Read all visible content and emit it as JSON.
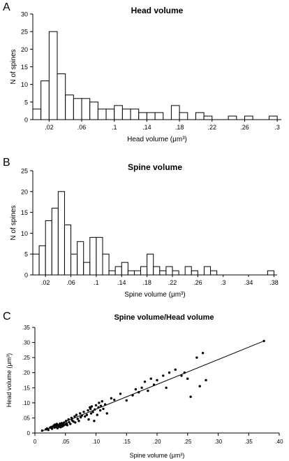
{
  "panels": [
    {
      "letter": "A",
      "chart_data": {
        "type": "bar",
        "title": "Head volume",
        "xlabel": "Head volume (μm³)",
        "ylabel": "N of spines",
        "bin_width": 0.01,
        "bin_start": 0.0,
        "xlim": [
          0,
          0.305
        ],
        "ylim": [
          0,
          30
        ],
        "yticks": [
          0,
          5,
          10,
          15,
          20,
          25,
          30
        ],
        "xticks": [
          0.02,
          0.06,
          0.1,
          0.14,
          0.18,
          0.22,
          0.26,
          0.3
        ],
        "xtick_labels": [
          ".02",
          ".06",
          ".1",
          ".14",
          ".18",
          ".22",
          ".26",
          ".3"
        ],
        "values": [
          3,
          11,
          25,
          13,
          7,
          6,
          6,
          5,
          3,
          3,
          4,
          3,
          3,
          2,
          2,
          2,
          0,
          4,
          2,
          0,
          2,
          1,
          0,
          0,
          1,
          0,
          1,
          0,
          0,
          1
        ]
      }
    },
    {
      "letter": "B",
      "chart_data": {
        "type": "bar",
        "title": "Spine volume",
        "xlabel": "Spine volume (μm³)",
        "ylabel": "N of spines",
        "bin_width": 0.01,
        "bin_start": 0.0,
        "xlim": [
          0,
          0.385
        ],
        "ylim": [
          0,
          25
        ],
        "yticks": [
          0,
          5,
          10,
          15,
          20,
          25
        ],
        "xticks": [
          0.02,
          0.06,
          0.1,
          0.14,
          0.18,
          0.22,
          0.26,
          0.3,
          0.34,
          0.38
        ],
        "xtick_labels": [
          ".02",
          ".06",
          ".1",
          ".14",
          ".18",
          ".22",
          ".26",
          ".3",
          ".34",
          ".38"
        ],
        "values": [
          5,
          7,
          13,
          16,
          20,
          12,
          5,
          8,
          3,
          9,
          9,
          5,
          1,
          2,
          3,
          1,
          1,
          2,
          5,
          2,
          1,
          2,
          1,
          0,
          2,
          1,
          0,
          2,
          1,
          0,
          0,
          0,
          0,
          0,
          0,
          0,
          0,
          1
        ]
      }
    },
    {
      "letter": "C",
      "chart_data": {
        "type": "scatter",
        "title": "Spine volume/Head volume",
        "xlabel": "Spine volume (μm³)",
        "ylabel": "Head volume (μm³)",
        "xlim": [
          0,
          0.4
        ],
        "ylim": [
          0,
          0.35
        ],
        "xticks": [
          0,
          0.05,
          0.1,
          0.15,
          0.2,
          0.25,
          0.3,
          0.35,
          0.4
        ],
        "xtick_labels": [
          "0",
          ".05",
          ".10",
          ".15",
          ".20",
          ".25",
          ".30",
          ".35",
          ".40"
        ],
        "yticks": [
          0,
          0.05,
          0.1,
          0.15,
          0.2,
          0.25,
          0.3,
          0.35
        ],
        "ytick_labels": [
          "0",
          ".05",
          ".10",
          ".15",
          ".20",
          ".25",
          ".30",
          ".35"
        ],
        "regression": {
          "x0": 0.01,
          "y0": 0.005,
          "x1": 0.375,
          "y1": 0.305
        },
        "points": [
          [
            0.012,
            0.008
          ],
          [
            0.018,
            0.012
          ],
          [
            0.02,
            0.015
          ],
          [
            0.022,
            0.01
          ],
          [
            0.025,
            0.018
          ],
          [
            0.027,
            0.02
          ],
          [
            0.028,
            0.014
          ],
          [
            0.03,
            0.022
          ],
          [
            0.031,
            0.025
          ],
          [
            0.032,
            0.018
          ],
          [
            0.033,
            0.028
          ],
          [
            0.034,
            0.02
          ],
          [
            0.035,
            0.023
          ],
          [
            0.036,
            0.03
          ],
          [
            0.037,
            0.016
          ],
          [
            0.038,
            0.026
          ],
          [
            0.039,
            0.021
          ],
          [
            0.04,
            0.024
          ],
          [
            0.041,
            0.031
          ],
          [
            0.042,
            0.019
          ],
          [
            0.043,
            0.027
          ],
          [
            0.044,
            0.033
          ],
          [
            0.045,
            0.022
          ],
          [
            0.046,
            0.03
          ],
          [
            0.047,
            0.025
          ],
          [
            0.048,
            0.035
          ],
          [
            0.05,
            0.028
          ],
          [
            0.051,
            0.04
          ],
          [
            0.052,
            0.032
          ],
          [
            0.053,
            0.026
          ],
          [
            0.055,
            0.045
          ],
          [
            0.056,
            0.036
          ],
          [
            0.058,
            0.03
          ],
          [
            0.06,
            0.05
          ],
          [
            0.061,
            0.042
          ],
          [
            0.063,
            0.038
          ],
          [
            0.065,
            0.055
          ],
          [
            0.066,
            0.035
          ],
          [
            0.068,
            0.06
          ],
          [
            0.07,
            0.047
          ],
          [
            0.072,
            0.04
          ],
          [
            0.074,
            0.065
          ],
          [
            0.075,
            0.052
          ],
          [
            0.077,
            0.058
          ],
          [
            0.08,
            0.07
          ],
          [
            0.082,
            0.055
          ],
          [
            0.085,
            0.06
          ],
          [
            0.087,
            0.075
          ],
          [
            0.088,
            0.045
          ],
          [
            0.09,
            0.085
          ],
          [
            0.091,
            0.08
          ],
          [
            0.092,
            0.065
          ],
          [
            0.093,
            0.088
          ],
          [
            0.095,
            0.07
          ],
          [
            0.097,
            0.04
          ],
          [
            0.098,
            0.078
          ],
          [
            0.1,
            0.092
          ],
          [
            0.102,
            0.06
          ],
          [
            0.104,
            0.085
          ],
          [
            0.105,
            0.1
          ],
          [
            0.107,
            0.075
          ],
          [
            0.108,
            0.09
          ],
          [
            0.11,
            0.105
          ],
          [
            0.112,
            0.08
          ],
          [
            0.115,
            0.095
          ],
          [
            0.118,
            0.065
          ],
          [
            0.125,
            0.115
          ],
          [
            0.13,
            0.11
          ],
          [
            0.14,
            0.13
          ],
          [
            0.15,
            0.108
          ],
          [
            0.16,
            0.125
          ],
          [
            0.165,
            0.145
          ],
          [
            0.17,
            0.135
          ],
          [
            0.175,
            0.15
          ],
          [
            0.18,
            0.17
          ],
          [
            0.185,
            0.14
          ],
          [
            0.19,
            0.18
          ],
          [
            0.195,
            0.16
          ],
          [
            0.2,
            0.175
          ],
          [
            0.21,
            0.19
          ],
          [
            0.215,
            0.15
          ],
          [
            0.22,
            0.2
          ],
          [
            0.23,
            0.21
          ],
          [
            0.24,
            0.19
          ],
          [
            0.245,
            0.2
          ],
          [
            0.25,
            0.18
          ],
          [
            0.255,
            0.12
          ],
          [
            0.265,
            0.25
          ],
          [
            0.27,
            0.155
          ],
          [
            0.275,
            0.265
          ],
          [
            0.28,
            0.175
          ],
          [
            0.375,
            0.305
          ]
        ]
      }
    }
  ]
}
